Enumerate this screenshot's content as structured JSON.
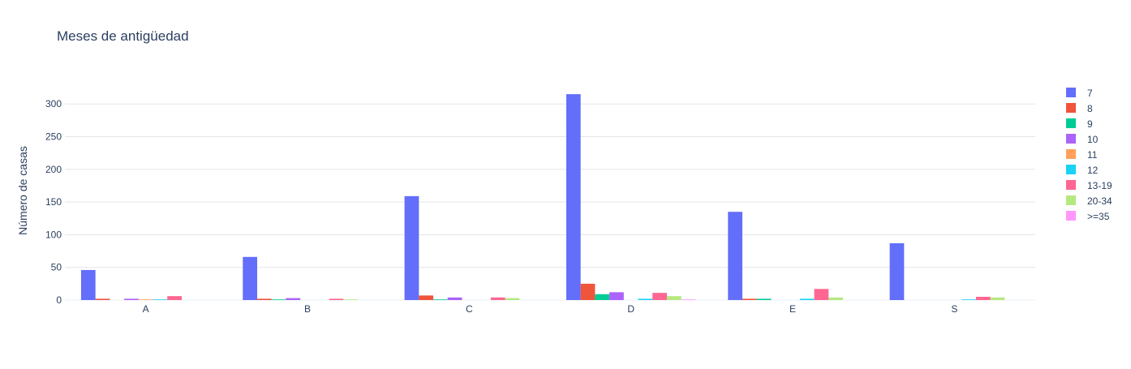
{
  "chart_data": {
    "type": "bar",
    "title": "Meses de antigüedad",
    "xlabel": "",
    "ylabel": "Número de casas",
    "categories": [
      "A",
      "B",
      "C",
      "D",
      "E",
      "S"
    ],
    "ylim": [
      0,
      335
    ],
    "yticks": [
      0,
      50,
      100,
      150,
      200,
      250,
      300
    ],
    "grid": true,
    "legend_position": "right",
    "series": [
      {
        "name": "7",
        "color": "#636efa",
        "values": [
          46,
          66,
          159,
          315,
          135,
          87
        ]
      },
      {
        "name": "8",
        "color": "#ef553b",
        "values": [
          2,
          2,
          7,
          25,
          2,
          0
        ]
      },
      {
        "name": "9",
        "color": "#00cc96",
        "values": [
          0,
          1,
          1,
          9,
          2,
          0
        ]
      },
      {
        "name": "10",
        "color": "#ab63fa",
        "values": [
          2,
          3,
          4,
          12,
          0,
          0
        ]
      },
      {
        "name": "11",
        "color": "#ffa15a",
        "values": [
          1,
          0,
          0,
          0,
          0,
          0
        ]
      },
      {
        "name": "12",
        "color": "#19d3f3",
        "values": [
          1,
          0,
          0,
          2,
          2,
          1
        ]
      },
      {
        "name": "13-19",
        "color": "#ff6692",
        "values": [
          6,
          2,
          4,
          11,
          17,
          5
        ]
      },
      {
        "name": "20-34",
        "color": "#b6e880",
        "values": [
          0,
          1,
          3,
          6,
          4,
          4
        ]
      },
      {
        "name": ">=35",
        "color": "#ff97ff",
        "values": [
          0,
          0,
          0,
          1,
          0,
          0
        ]
      }
    ]
  }
}
